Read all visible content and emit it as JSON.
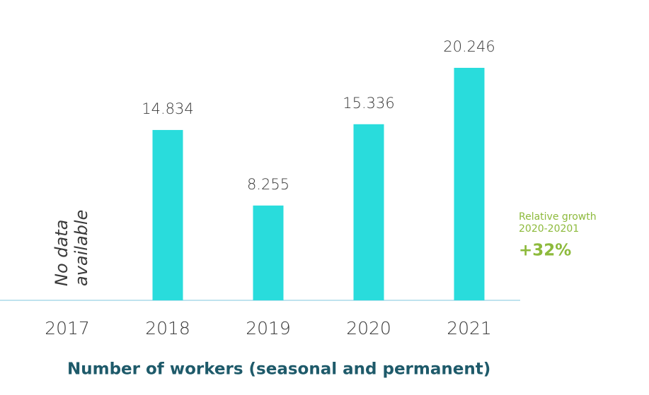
{
  "chart_data": {
    "type": "bar",
    "title": "Number of workers (seasonal and permanent)",
    "categories": [
      "2017",
      "2018",
      "2019",
      "2020",
      "2021"
    ],
    "values": [
      null,
      14834,
      8255,
      15336,
      20246
    ],
    "value_labels": [
      null,
      "14.834",
      "8.255",
      "15.336",
      "20.246"
    ],
    "color": "#29dcdc",
    "missing_note": [
      "No data",
      "available"
    ],
    "growth_note": {
      "label": [
        "Relative growth",
        "2020-20201"
      ],
      "value_label": "+32%"
    }
  }
}
